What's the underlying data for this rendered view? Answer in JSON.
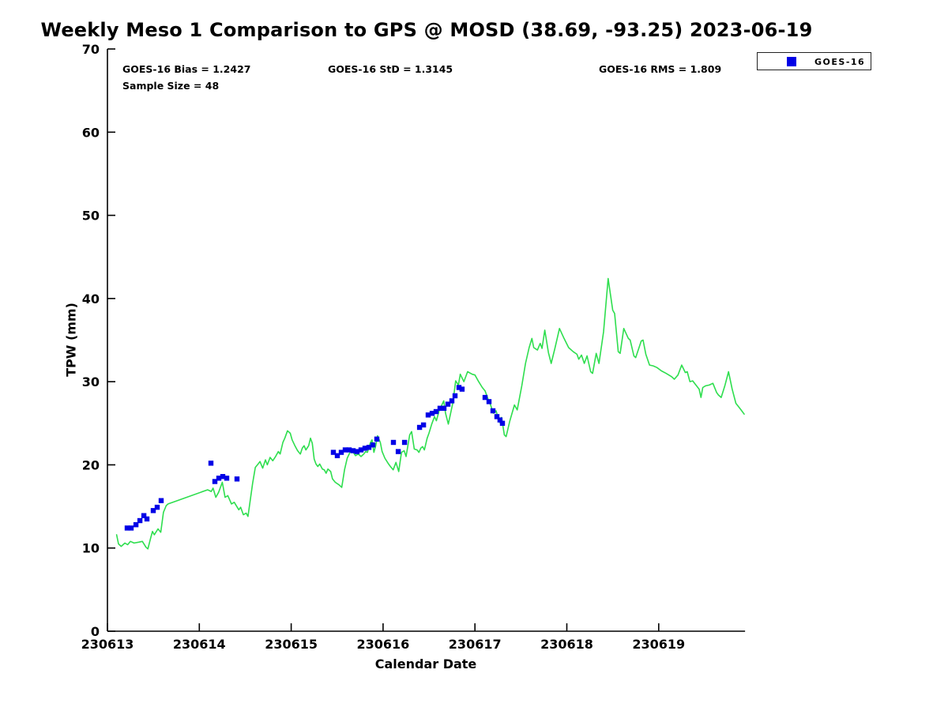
{
  "title": "Weekly Meso 1 Comparison to GPS @ MOSD (38.69, -93.25) 2023-06-19",
  "stats": {
    "bias_label": "GOES-16 Bias = 1.2427",
    "std_label": "GOES-16 StD = 1.3145",
    "rms_label": "GOES-16 RMS = 1.809",
    "sample_label": "Sample Size = 48"
  },
  "legend": {
    "label": "GOES-16",
    "marker_color": "#0000e6"
  },
  "colors": {
    "gps_line": "#2ede4e",
    "goes_marker": "#0000e6",
    "axis": "#000000"
  },
  "chart_data": {
    "type": "line",
    "title": "Weekly Meso 1 Comparison to GPS @ MOSD (38.69, -93.25) 2023-06-19",
    "xlabel": "Calendar Date",
    "ylabel": "TPW (mm)",
    "ylim": [
      0,
      70
    ],
    "y_ticks": [
      0,
      10,
      20,
      30,
      40,
      50,
      60,
      70
    ],
    "x_axis": {
      "tick_labels": [
        "230613",
        "230614",
        "230615",
        "230616",
        "230617",
        "230618",
        "230619"
      ],
      "tick_positions_days": [
        0,
        1,
        2,
        3,
        4,
        5,
        6
      ],
      "range_days": [
        0,
        6.94
      ]
    },
    "grid": false,
    "legend_position": "top-right-outside",
    "annotations": {
      "goes16_bias": 1.2427,
      "goes16_std": 1.3145,
      "goes16_rms": 1.809,
      "sample_size": 48
    },
    "x_units": "days after 230613 (YYMMDD)",
    "series": [
      {
        "name": "GPS",
        "style": "line",
        "color": "#2ede4e",
        "points": [
          [
            0.1,
            11.6
          ],
          [
            0.12,
            10.5
          ],
          [
            0.15,
            10.2
          ],
          [
            0.19,
            10.6
          ],
          [
            0.22,
            10.4
          ],
          [
            0.25,
            10.8
          ],
          [
            0.29,
            10.6
          ],
          [
            0.34,
            10.7
          ],
          [
            0.38,
            10.8
          ],
          [
            0.42,
            10.1
          ],
          [
            0.44,
            9.9
          ],
          [
            0.47,
            11.2
          ],
          [
            0.49,
            12.0
          ],
          [
            0.51,
            11.6
          ],
          [
            0.55,
            12.3
          ],
          [
            0.58,
            11.9
          ],
          [
            0.61,
            14.3
          ],
          [
            0.64,
            15.1
          ],
          [
            0.66,
            15.3
          ],
          [
            1.09,
            17.0
          ],
          [
            1.13,
            16.8
          ],
          [
            1.15,
            17.2
          ],
          [
            1.18,
            16.1
          ],
          [
            1.21,
            16.7
          ],
          [
            1.25,
            17.9
          ],
          [
            1.28,
            16.1
          ],
          [
            1.31,
            16.3
          ],
          [
            1.35,
            15.3
          ],
          [
            1.38,
            15.5
          ],
          [
            1.43,
            14.6
          ],
          [
            1.45,
            14.9
          ],
          [
            1.48,
            14.0
          ],
          [
            1.51,
            14.2
          ],
          [
            1.53,
            13.8
          ],
          [
            1.58,
            17.8
          ],
          [
            1.61,
            19.7
          ],
          [
            1.64,
            20.1
          ],
          [
            1.66,
            20.4
          ],
          [
            1.69,
            19.6
          ],
          [
            1.72,
            20.6
          ],
          [
            1.74,
            20.0
          ],
          [
            1.77,
            20.9
          ],
          [
            1.8,
            20.5
          ],
          [
            1.83,
            21.0
          ],
          [
            1.86,
            21.6
          ],
          [
            1.88,
            21.3
          ],
          [
            1.91,
            22.7
          ],
          [
            1.93,
            23.2
          ],
          [
            1.96,
            24.1
          ],
          [
            1.99,
            23.8
          ],
          [
            2.01,
            23.0
          ],
          [
            2.04,
            22.3
          ],
          [
            2.07,
            21.7
          ],
          [
            2.1,
            21.3
          ],
          [
            2.12,
            22.0
          ],
          [
            2.14,
            22.3
          ],
          [
            2.16,
            21.8
          ],
          [
            2.19,
            22.3
          ],
          [
            2.21,
            23.2
          ],
          [
            2.23,
            22.6
          ],
          [
            2.25,
            20.7
          ],
          [
            2.27,
            20.1
          ],
          [
            2.29,
            19.8
          ],
          [
            2.31,
            20.1
          ],
          [
            2.34,
            19.5
          ],
          [
            2.36,
            19.4
          ],
          [
            2.38,
            19.0
          ],
          [
            2.4,
            19.5
          ],
          [
            2.43,
            19.2
          ],
          [
            2.45,
            18.3
          ],
          [
            2.48,
            17.9
          ],
          [
            2.52,
            17.6
          ],
          [
            2.55,
            17.3
          ],
          [
            2.58,
            19.4
          ],
          [
            2.61,
            20.8
          ],
          [
            2.64,
            21.5
          ],
          [
            2.67,
            21.6
          ],
          [
            2.7,
            21.1
          ],
          [
            2.73,
            21.3
          ],
          [
            2.76,
            21.0
          ],
          [
            2.79,
            21.3
          ],
          [
            2.81,
            21.6
          ],
          [
            2.83,
            21.5
          ],
          [
            2.86,
            22.6
          ],
          [
            2.88,
            23.0
          ],
          [
            2.9,
            21.5
          ],
          [
            2.92,
            22.3
          ],
          [
            2.94,
            23.5
          ],
          [
            2.97,
            22.7
          ],
          [
            2.99,
            21.6
          ],
          [
            3.02,
            20.8
          ],
          [
            3.06,
            20.1
          ],
          [
            3.08,
            19.8
          ],
          [
            3.11,
            19.4
          ],
          [
            3.14,
            20.3
          ],
          [
            3.17,
            19.2
          ],
          [
            3.2,
            21.5
          ],
          [
            3.23,
            21.7
          ],
          [
            3.25,
            21.0
          ],
          [
            3.29,
            23.6
          ],
          [
            3.31,
            24.0
          ],
          [
            3.34,
            21.9
          ],
          [
            3.37,
            21.8
          ],
          [
            3.39,
            21.5
          ],
          [
            3.41,
            22.0
          ],
          [
            3.43,
            22.2
          ],
          [
            3.45,
            21.8
          ],
          [
            3.48,
            23.2
          ],
          [
            3.5,
            23.8
          ],
          [
            3.53,
            24.9
          ],
          [
            3.56,
            25.8
          ],
          [
            3.58,
            25.3
          ],
          [
            3.61,
            26.5
          ],
          [
            3.66,
            27.7
          ],
          [
            3.68,
            26.2
          ],
          [
            3.71,
            24.9
          ],
          [
            3.76,
            27.5
          ],
          [
            3.79,
            30.1
          ],
          [
            3.82,
            29.6
          ],
          [
            3.84,
            30.9
          ],
          [
            3.88,
            30.0
          ],
          [
            3.92,
            31.2
          ],
          [
            3.97,
            30.9
          ],
          [
            4.0,
            30.8
          ],
          [
            4.04,
            30.0
          ],
          [
            4.08,
            29.3
          ],
          [
            4.11,
            28.9
          ],
          [
            4.15,
            27.7
          ],
          [
            4.17,
            27.2
          ],
          [
            4.2,
            26.2
          ],
          [
            4.23,
            26.5
          ],
          [
            4.26,
            25.4
          ],
          [
            4.28,
            24.9
          ],
          [
            4.29,
            25.7
          ],
          [
            4.32,
            23.6
          ],
          [
            4.34,
            23.4
          ],
          [
            4.38,
            25.3
          ],
          [
            4.43,
            27.2
          ],
          [
            4.46,
            26.6
          ],
          [
            4.51,
            29.5
          ],
          [
            4.55,
            32.2
          ],
          [
            4.59,
            34.1
          ],
          [
            4.62,
            35.2
          ],
          [
            4.64,
            34.1
          ],
          [
            4.68,
            33.8
          ],
          [
            4.71,
            34.6
          ],
          [
            4.73,
            34.0
          ],
          [
            4.76,
            36.2
          ],
          [
            4.8,
            33.5
          ],
          [
            4.83,
            32.2
          ],
          [
            4.87,
            34.0
          ],
          [
            4.92,
            36.4
          ],
          [
            4.97,
            35.2
          ],
          [
            5.02,
            34.1
          ],
          [
            5.07,
            33.6
          ],
          [
            5.11,
            33.3
          ],
          [
            5.13,
            32.7
          ],
          [
            5.16,
            33.2
          ],
          [
            5.19,
            32.2
          ],
          [
            5.22,
            33.1
          ],
          [
            5.26,
            31.2
          ],
          [
            5.28,
            31.0
          ],
          [
            5.32,
            33.4
          ],
          [
            5.35,
            32.2
          ],
          [
            5.4,
            36.0
          ],
          [
            5.45,
            42.4
          ],
          [
            5.48,
            40.1
          ],
          [
            5.5,
            38.6
          ],
          [
            5.52,
            38.2
          ],
          [
            5.56,
            33.6
          ],
          [
            5.58,
            33.4
          ],
          [
            5.62,
            36.4
          ],
          [
            5.67,
            35.2
          ],
          [
            5.69,
            35.0
          ],
          [
            5.73,
            33.1
          ],
          [
            5.75,
            32.9
          ],
          [
            5.81,
            34.9
          ],
          [
            5.83,
            35.0
          ],
          [
            5.86,
            33.3
          ],
          [
            5.9,
            32.0
          ],
          [
            5.94,
            31.9
          ],
          [
            5.98,
            31.7
          ],
          [
            6.03,
            31.3
          ],
          [
            6.08,
            31.0
          ],
          [
            6.14,
            30.6
          ],
          [
            6.17,
            30.3
          ],
          [
            6.21,
            30.8
          ],
          [
            6.25,
            32.0
          ],
          [
            6.29,
            31.1
          ],
          [
            6.31,
            31.2
          ],
          [
            6.34,
            30.0
          ],
          [
            6.37,
            30.1
          ],
          [
            6.44,
            29.1
          ],
          [
            6.46,
            28.1
          ],
          [
            6.48,
            29.3
          ],
          [
            6.51,
            29.5
          ],
          [
            6.55,
            29.6
          ],
          [
            6.59,
            29.8
          ],
          [
            6.63,
            28.7
          ],
          [
            6.65,
            28.4
          ],
          [
            6.68,
            28.1
          ],
          [
            6.72,
            29.5
          ],
          [
            6.76,
            31.2
          ],
          [
            6.8,
            29.1
          ],
          [
            6.84,
            27.4
          ],
          [
            6.89,
            26.7
          ],
          [
            6.93,
            26.1
          ]
        ]
      },
      {
        "name": "GOES-16",
        "style": "scatter",
        "marker": "square",
        "color": "#0000e6",
        "points": [
          [
            0.215,
            12.4
          ],
          [
            0.258,
            12.4
          ],
          [
            0.31,
            12.8
          ],
          [
            0.353,
            13.3
          ],
          [
            0.396,
            13.9
          ],
          [
            0.43,
            13.5
          ],
          [
            0.499,
            14.5
          ],
          [
            0.542,
            14.9
          ],
          [
            0.585,
            15.7
          ],
          [
            1.126,
            20.2
          ],
          [
            1.169,
            18.0
          ],
          [
            1.212,
            18.4
          ],
          [
            1.255,
            18.6
          ],
          [
            1.298,
            18.4
          ],
          [
            1.41,
            18.3
          ],
          [
            2.459,
            21.5
          ],
          [
            2.502,
            21.1
          ],
          [
            2.545,
            21.5
          ],
          [
            2.588,
            21.8
          ],
          [
            2.631,
            21.8
          ],
          [
            2.674,
            21.7
          ],
          [
            2.717,
            21.6
          ],
          [
            2.76,
            21.8
          ],
          [
            2.803,
            22.0
          ],
          [
            2.846,
            22.1
          ],
          [
            2.889,
            22.4
          ],
          [
            2.932,
            23.1
          ],
          [
            3.113,
            22.7
          ],
          [
            3.165,
            21.6
          ],
          [
            3.234,
            22.7
          ],
          [
            3.397,
            24.5
          ],
          [
            3.44,
            24.8
          ],
          [
            3.491,
            26.0
          ],
          [
            3.534,
            26.2
          ],
          [
            3.577,
            26.4
          ],
          [
            3.62,
            26.8
          ],
          [
            3.663,
            26.8
          ],
          [
            3.706,
            27.3
          ],
          [
            3.749,
            27.7
          ],
          [
            3.783,
            28.3
          ],
          [
            3.826,
            29.3
          ],
          [
            3.86,
            29.1
          ],
          [
            4.11,
            28.1
          ],
          [
            4.153,
            27.6
          ],
          [
            4.196,
            26.5
          ],
          [
            4.239,
            25.8
          ],
          [
            4.273,
            25.4
          ],
          [
            4.299,
            25.0
          ]
        ]
      }
    ]
  }
}
